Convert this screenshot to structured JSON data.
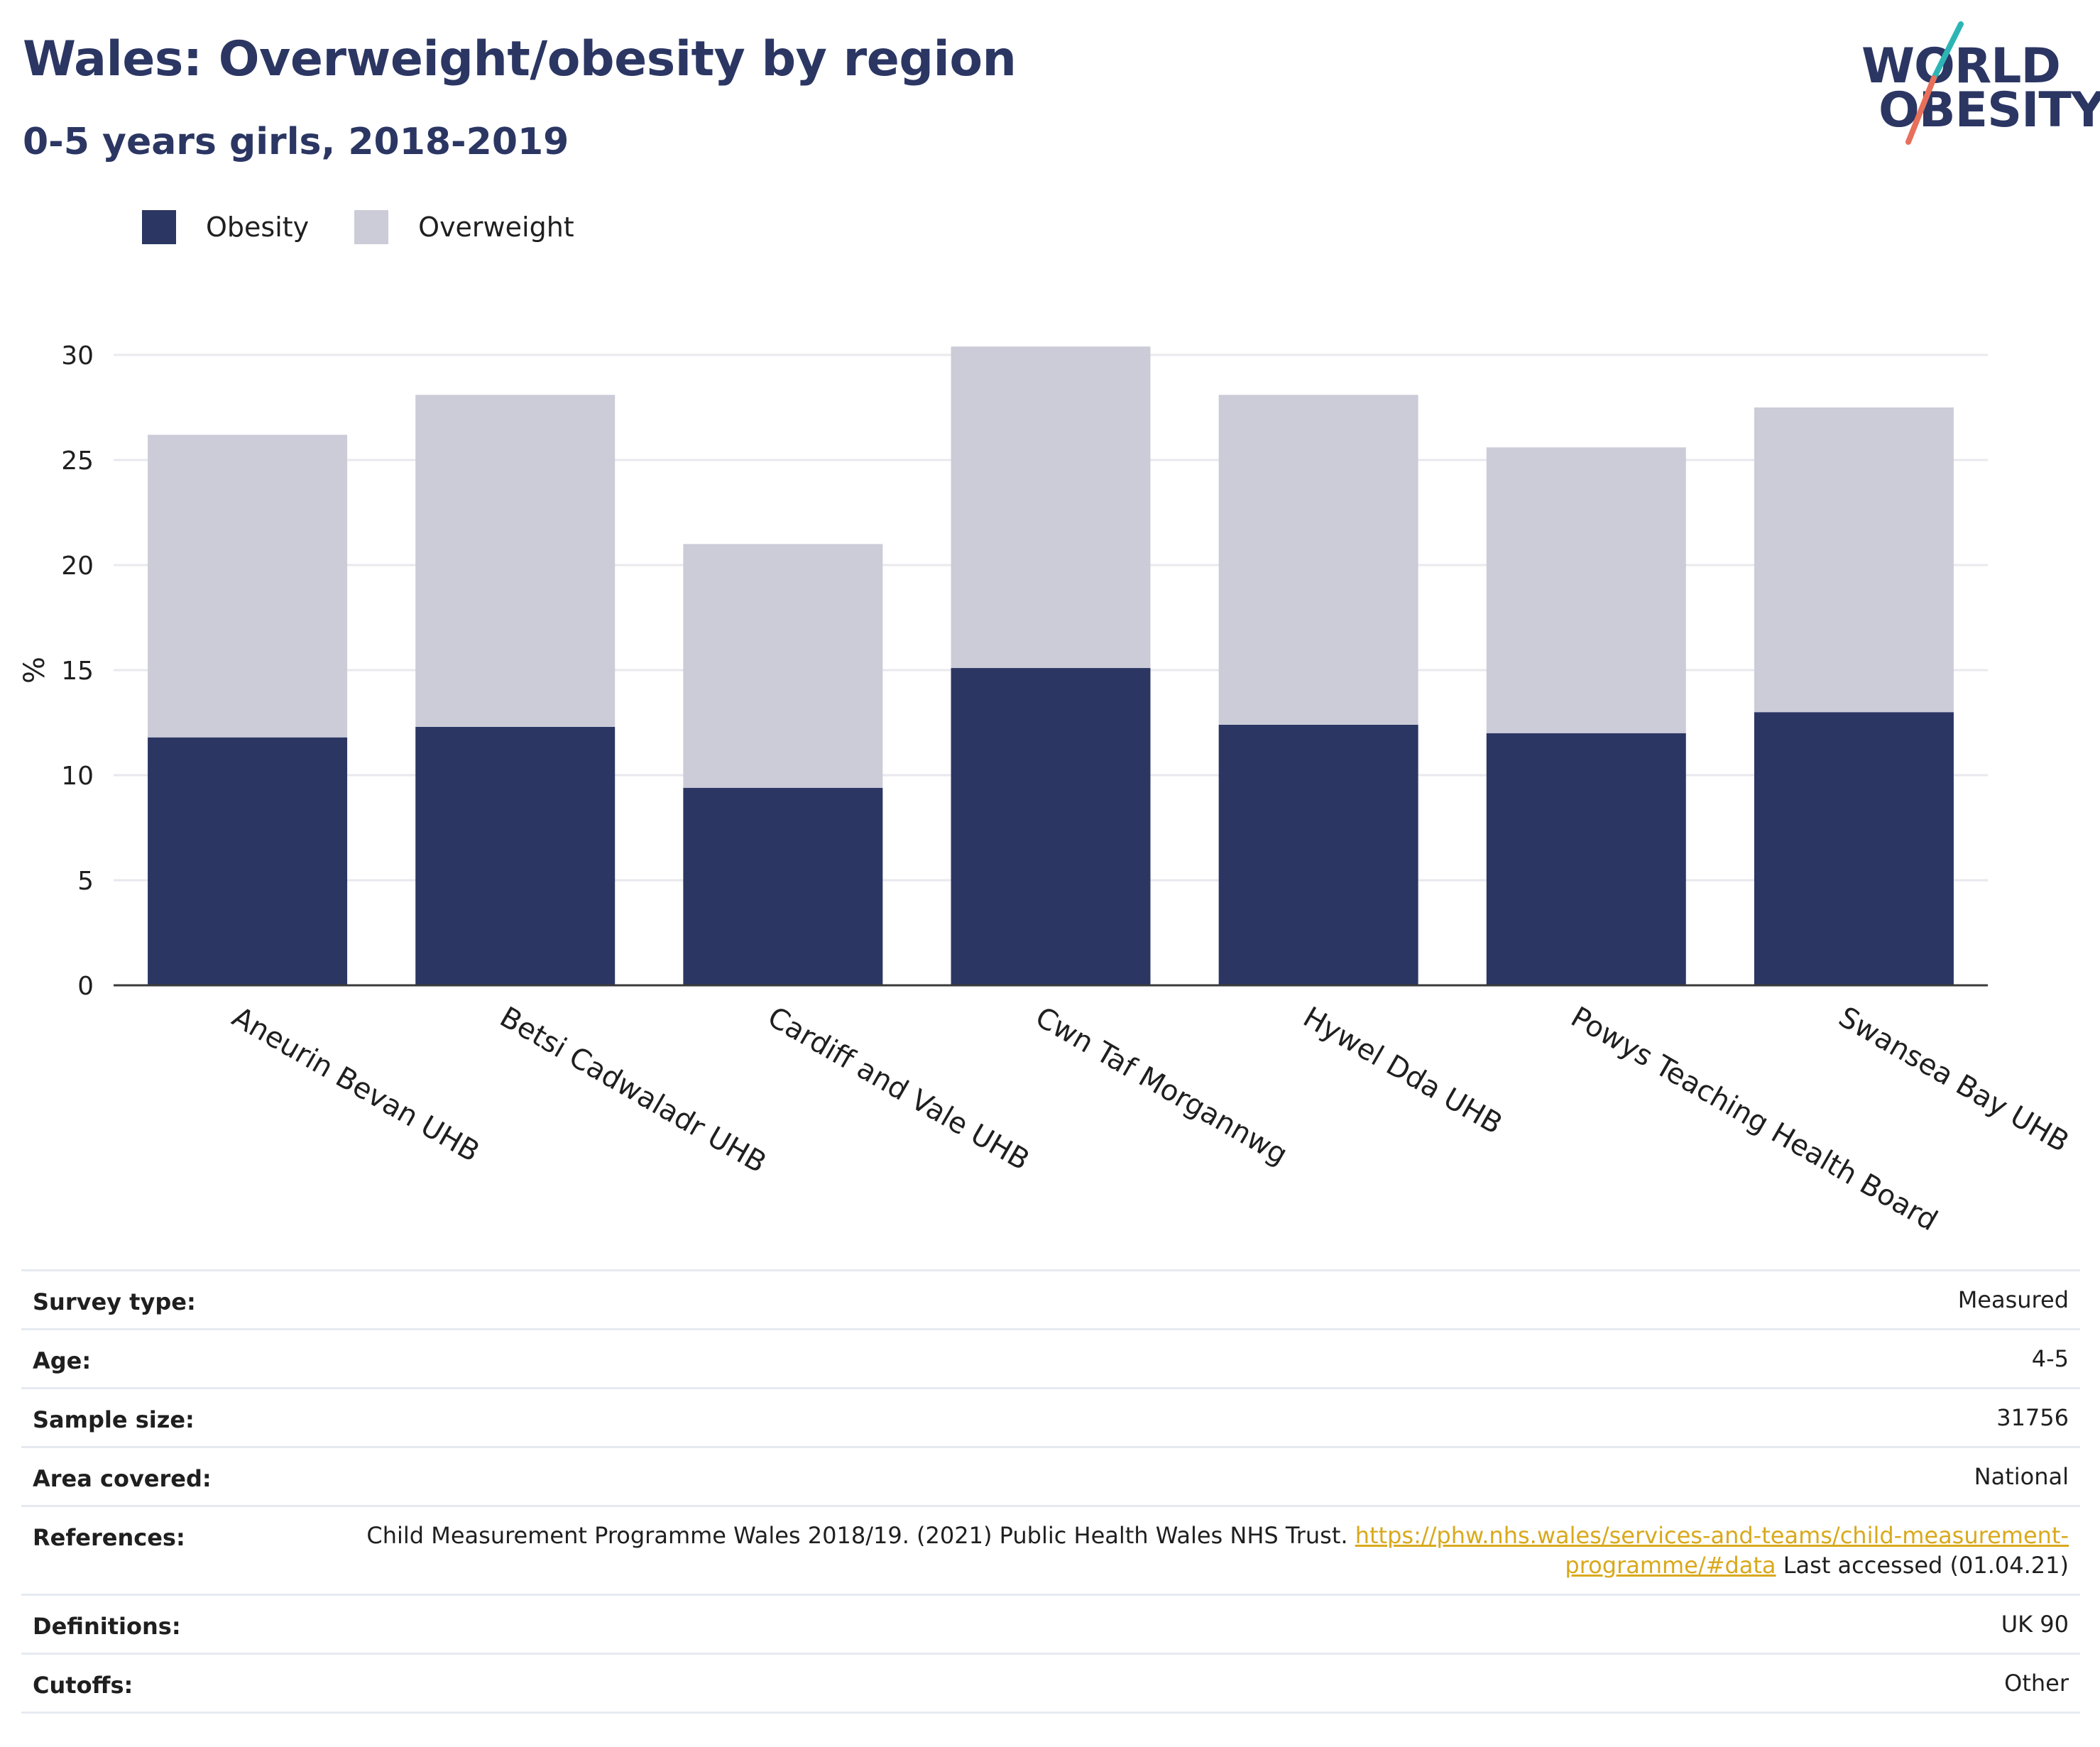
{
  "header": {
    "title": "Wales: Overweight/obesity by region",
    "subtitle": "0-5 years girls, 2018-2019"
  },
  "logo": {
    "line1": "WORLD",
    "line2": "OBESITY"
  },
  "colors": {
    "obesity": "#2b3663",
    "overweight": "#cbccd8",
    "grid": "#e8e8ee",
    "axis": "#3a3a3a",
    "link": "#d9a91c",
    "logo_teal": "#2cb5b4",
    "logo_coral": "#e8705b"
  },
  "chart_data": {
    "type": "bar",
    "stacked": true,
    "categories": [
      "Aneurin Bevan UHB",
      "Betsi Cadwaladr UHB",
      "Cardiff and Vale UHB",
      "Cwn Taf Morgannwg",
      "Hywel Dda UHB",
      "Powys Teaching Health Board",
      "Swansea Bay UHB"
    ],
    "series": [
      {
        "name": "Obesity",
        "values": [
          11.8,
          12.3,
          9.4,
          15.1,
          12.4,
          12.0,
          13.0
        ]
      },
      {
        "name": "Overweight",
        "values": [
          14.4,
          15.8,
          11.6,
          15.3,
          15.7,
          13.6,
          14.5
        ]
      }
    ],
    "totals": [
      26.2,
      28.1,
      21.0,
      30.4,
      28.1,
      25.6,
      27.5
    ],
    "ylabel": "%",
    "xlabel": "",
    "ylim": [
      0,
      30
    ],
    "yticks": [
      0,
      5,
      10,
      15,
      20,
      25,
      30
    ],
    "grid": true,
    "legend_position": "top-left"
  },
  "info": {
    "rows": [
      {
        "label": "Survey type:",
        "value": "Measured"
      },
      {
        "label": "Age:",
        "value": "4-5"
      },
      {
        "label": "Sample size:",
        "value": "31756"
      },
      {
        "label": "Area covered:",
        "value": "National"
      },
      {
        "label": "References:",
        "value_pre": "Child Measurement Programme Wales 2018/19. (2021) Public Health Wales NHS Trust. ",
        "link": "https://phw.nhs.wales/services-and-teams/child-measurement-programme/#data",
        "value_post": " Last accessed (01.04.21)"
      },
      {
        "label": "Definitions:",
        "value": "UK 90"
      },
      {
        "label": "Cutoffs:",
        "value": "Other"
      }
    ]
  }
}
